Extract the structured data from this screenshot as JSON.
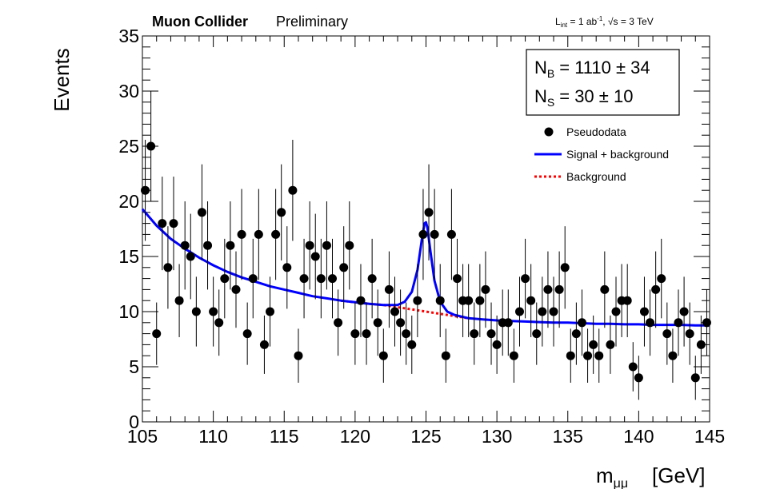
{
  "header": {
    "experiment": "Muon Collider",
    "status": "Preliminary",
    "lumi_text": "L",
    "lumi_sub": "int",
    "lumi_rest": " = 1 ab",
    "lumi_sup": "-1",
    "energy_text": ", √s = 3 TeV"
  },
  "stats_box": {
    "nb_label": "N",
    "nb_sub": "B",
    "nb_value": "= 1110 ± 34",
    "ns_label": "N",
    "ns_sub": "S",
    "ns_value": "= 30 ± 10"
  },
  "legend": {
    "pseudodata": "Pseudodata",
    "signal_bkg": "Signal + background",
    "background": "Background"
  },
  "axes": {
    "ylabel": "Events",
    "xlabel_main": "m",
    "xlabel_sub": "μμ",
    "xlabel_unit": "[GeV]"
  },
  "colors": {
    "data": "#000000",
    "signal_bkg": "#0000ff",
    "background": "#ff0000"
  },
  "chart_data": {
    "type": "scatter",
    "title": "Muon Collider Preliminary",
    "xlabel": "m_μμ [GeV]",
    "ylabel": "Events",
    "xlim": [
      105,
      145
    ],
    "ylim": [
      0,
      35
    ],
    "xticks": [
      105,
      110,
      115,
      120,
      125,
      130,
      135,
      140,
      145
    ],
    "yticks": [
      0,
      5,
      10,
      15,
      20,
      25,
      30,
      35
    ],
    "grid": false,
    "legend_position": "top-right",
    "series": [
      {
        "name": "Pseudodata",
        "style": "points-with-errorbars",
        "x": [
          105.2,
          105.6,
          106.0,
          106.4,
          106.8,
          107.2,
          107.6,
          108.0,
          108.4,
          108.8,
          109.2,
          109.6,
          110.0,
          110.4,
          110.8,
          111.2,
          111.6,
          112.0,
          112.4,
          112.8,
          113.2,
          113.6,
          114.0,
          114.4,
          114.8,
          115.2,
          115.6,
          116.0,
          116.4,
          116.8,
          117.2,
          117.6,
          118.0,
          118.4,
          118.8,
          119.2,
          119.6,
          120.0,
          120.4,
          120.8,
          121.2,
          121.6,
          122.0,
          122.4,
          122.8,
          123.2,
          123.6,
          124.0,
          124.4,
          124.8,
          125.2,
          125.6,
          126.0,
          126.4,
          126.8,
          127.2,
          127.6,
          128.0,
          128.4,
          128.8,
          129.2,
          129.6,
          130.0,
          130.4,
          130.8,
          131.2,
          131.6,
          132.0,
          132.4,
          132.8,
          133.2,
          133.6,
          134.0,
          134.4,
          134.8,
          135.2,
          135.6,
          136.0,
          136.4,
          136.8,
          137.2,
          137.6,
          138.0,
          138.4,
          138.8,
          139.2,
          139.6,
          140.0,
          140.4,
          140.8,
          141.2,
          141.6,
          142.0,
          142.4,
          142.8,
          143.2,
          143.6,
          144.0,
          144.4,
          144.8
        ],
        "y": [
          21,
          25,
          8,
          18,
          14,
          18,
          11,
          16,
          15,
          10,
          19,
          16,
          10,
          9,
          13,
          16,
          12,
          17,
          8,
          13,
          17,
          7,
          10,
          17,
          19,
          14,
          21,
          6,
          13,
          16,
          15,
          13,
          16,
          13,
          9,
          14,
          16,
          8,
          11,
          8,
          13,
          9,
          6,
          12,
          10,
          9,
          8,
          7,
          11,
          17,
          19,
          17,
          11,
          6,
          17,
          13,
          11,
          11,
          8,
          11,
          12,
          8,
          7,
          9,
          9,
          6,
          10,
          13,
          11,
          8,
          10,
          12,
          10,
          12,
          14,
          6,
          8,
          9,
          6,
          7,
          6,
          12,
          7,
          10,
          11,
          11,
          5,
          4,
          10,
          9,
          12,
          13,
          8,
          6,
          9,
          10,
          8,
          4,
          7,
          9
        ]
      },
      {
        "name": "Signal + background",
        "style": "line",
        "x": [
          105,
          106,
          107,
          108,
          109,
          110,
          111,
          112,
          113,
          114,
          115,
          116,
          117,
          118,
          119,
          120,
          121,
          122,
          123,
          123.5,
          124,
          124.4,
          124.7,
          124.9,
          125.0,
          125.1,
          125.3,
          125.6,
          126,
          126.5,
          127,
          128,
          129,
          130,
          131,
          132,
          133,
          134,
          135,
          136,
          137,
          138,
          139,
          140,
          141,
          142,
          143,
          144,
          145
        ],
        "values": [
          19.3,
          17.8,
          16.6,
          15.7,
          14.9,
          14.2,
          13.6,
          13.1,
          12.7,
          12.3,
          12.0,
          11.7,
          11.4,
          11.2,
          11.0,
          10.85,
          10.7,
          10.6,
          10.6,
          10.9,
          11.8,
          13.8,
          16.5,
          18.0,
          18.1,
          17.6,
          15.6,
          12.8,
          10.9,
          10.0,
          9.7,
          9.4,
          9.3,
          9.2,
          9.15,
          9.1,
          9.05,
          9.0,
          9.0,
          8.95,
          8.9,
          8.9,
          8.85,
          8.85,
          8.8,
          8.8,
          8.8,
          8.75,
          8.75
        ]
      },
      {
        "name": "Background",
        "style": "dotted-line",
        "x": [
          119,
          120,
          121,
          122,
          123,
          124,
          125,
          126,
          127,
          128
        ],
        "values": [
          11.0,
          10.85,
          10.7,
          10.6,
          10.4,
          10.2,
          10.0,
          9.8,
          9.6,
          9.4
        ]
      }
    ]
  }
}
